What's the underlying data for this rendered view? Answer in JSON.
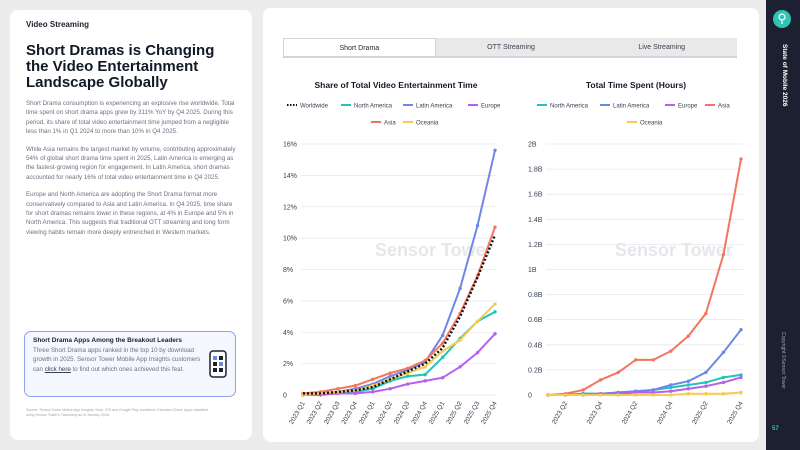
{
  "left": {
    "section_label": "Video Streaming",
    "headline": "Short Dramas is Changing the Video Entertainment Landscape Globally",
    "paragraphs": [
      "Short Drama consumption is experiencing an explosive rise worldwide. Total time spent on short drama apps grew by 311% YoY by Q4 2025. During this period, its share of total video entertainment time jumped from a negligible less than 1% in Q1 2024 to more than 10% in Q4 2025.",
      "While Asia remains the largest market by volume, contributing approximately 54% of global short drama time spent in 2025, Latin America is emerging as the fastest-growing region for engagement. In Latin America, short dramas accounted for nearly 16% of total video entertainment time in Q4 2025.",
      "Europe and North America are adopting the Short Drama format more conservatively compared to Asia and Latin America. In Q4 2025, time share for short dramas remains lower in these regions, at 4% in Europe and 5% in North America. This suggests that traditional OTT streaming and long form viewing habits remain more deeply entrenched in Western markets."
    ],
    "callout": {
      "title": "Short Drama Apps Among the Breakout Leaders",
      "text_before": "Three Short Drama apps ranked in the top 10 by download growth in 2025. Sensor Tower Mobile App Insights customers can ",
      "link": "click here",
      "text_after": " to find out which ones achieved this feat."
    },
    "source": "Source: Sensor Tower Mobile App Insights. Note: iOS and Google Play combined. Excludes China. Apps classified using Sensor Tower's Taxonomy as of January 2026."
  },
  "tabs": [
    "Short Drama",
    "OTT Streaming",
    "Live Streaming"
  ],
  "sidebar": {
    "title": "State of Mobile 2026",
    "copyright": "Copyright ©Sensor Tower",
    "page": "57"
  },
  "watermark": "Sensor Tower",
  "colors": {
    "Worldwide": "#111111",
    "North America": "#22c3b8",
    "Latin America": "#6f86e6",
    "Europe": "#b95ef0",
    "Asia": "#f2765f",
    "Oceania": "#f5cd4e"
  },
  "chart_data": [
    {
      "type": "line",
      "title": "Share of Total Video Entertainment Time",
      "categories": [
        "2023 Q1",
        "2023 Q2",
        "2023 Q3",
        "2023 Q4",
        "2024 Q1",
        "2024 Q2",
        "2024 Q3",
        "2024 Q4",
        "2025 Q1",
        "2025 Q2",
        "2025 Q3",
        "2025 Q4"
      ],
      "tick_labels": [
        "0",
        "2%",
        "4%",
        "6%",
        "8%",
        "10%",
        "12%",
        "14%",
        "16%"
      ],
      "ylim": [
        0,
        16
      ],
      "grid": true,
      "legend_position": "top",
      "series": [
        {
          "name": "Worldwide",
          "style": "dotted",
          "values": [
            0.1,
            0.1,
            0.2,
            0.3,
            0.5,
            1.0,
            1.5,
            2.0,
            3.0,
            5.0,
            7.5,
            10.2
          ]
        },
        {
          "name": "North America",
          "values": [
            0.0,
            0.1,
            0.1,
            0.2,
            0.4,
            0.9,
            1.2,
            1.3,
            2.4,
            3.6,
            4.7,
            5.3
          ]
        },
        {
          "name": "Latin America",
          "values": [
            0.0,
            0.1,
            0.2,
            0.4,
            0.7,
            1.2,
            1.6,
            2.1,
            3.8,
            6.8,
            10.8,
            15.6
          ]
        },
        {
          "name": "Europe",
          "values": [
            0.0,
            0.0,
            0.1,
            0.1,
            0.2,
            0.4,
            0.7,
            0.9,
            1.1,
            1.8,
            2.7,
            3.9
          ]
        },
        {
          "name": "Asia",
          "values": [
            0.1,
            0.2,
            0.4,
            0.6,
            1.0,
            1.4,
            1.7,
            2.2,
            3.3,
            5.2,
            7.6,
            10.7
          ]
        },
        {
          "name": "Oceania",
          "values": [
            0.0,
            0.1,
            0.2,
            0.3,
            0.6,
            1.0,
            1.4,
            1.8,
            2.8,
            3.5,
            4.7,
            5.8
          ]
        }
      ]
    },
    {
      "type": "line",
      "title": "Total Time Spent (Hours)",
      "categories": [
        "2023 Q1",
        "2023 Q2",
        "2023 Q3",
        "2023 Q4",
        "2024 Q1",
        "2024 Q2",
        "2024 Q3",
        "2024 Q4",
        "2025 Q1",
        "2025 Q2",
        "2025 Q3",
        "2025 Q4"
      ],
      "tick_categories": [
        "2023 Q2",
        "2023 Q4",
        "2024 Q2",
        "2024 Q4",
        "2025 Q2",
        "2025 Q4"
      ],
      "tick_labels": [
        "0",
        "0.2B",
        "0.4B",
        "0.6B",
        "0.8B",
        "1B",
        "1.2B",
        "1.4B",
        "1.6B",
        "1.8B",
        "2B"
      ],
      "ylim": [
        0,
        2.0
      ],
      "y_unit": "billion hours",
      "grid": true,
      "legend_position": "top",
      "series": [
        {
          "name": "North America",
          "values": [
            0.0,
            0.0,
            0.01,
            0.01,
            0.02,
            0.03,
            0.04,
            0.06,
            0.08,
            0.1,
            0.14,
            0.16
          ]
        },
        {
          "name": "Latin America",
          "values": [
            0.0,
            0.0,
            0.01,
            0.01,
            0.02,
            0.03,
            0.04,
            0.08,
            0.11,
            0.18,
            0.34,
            0.52
          ]
        },
        {
          "name": "Europe",
          "values": [
            0.0,
            0.0,
            0.0,
            0.01,
            0.01,
            0.02,
            0.02,
            0.03,
            0.05,
            0.07,
            0.1,
            0.14
          ]
        },
        {
          "name": "Asia",
          "values": [
            0.0,
            0.01,
            0.04,
            0.12,
            0.18,
            0.28,
            0.28,
            0.35,
            0.47,
            0.65,
            1.12,
            1.88
          ]
        },
        {
          "name": "Oceania",
          "values": [
            0.0,
            0.0,
            0.0,
            0.0,
            0.0,
            0.0,
            0.0,
            0.0,
            0.01,
            0.01,
            0.01,
            0.02
          ]
        }
      ]
    }
  ]
}
